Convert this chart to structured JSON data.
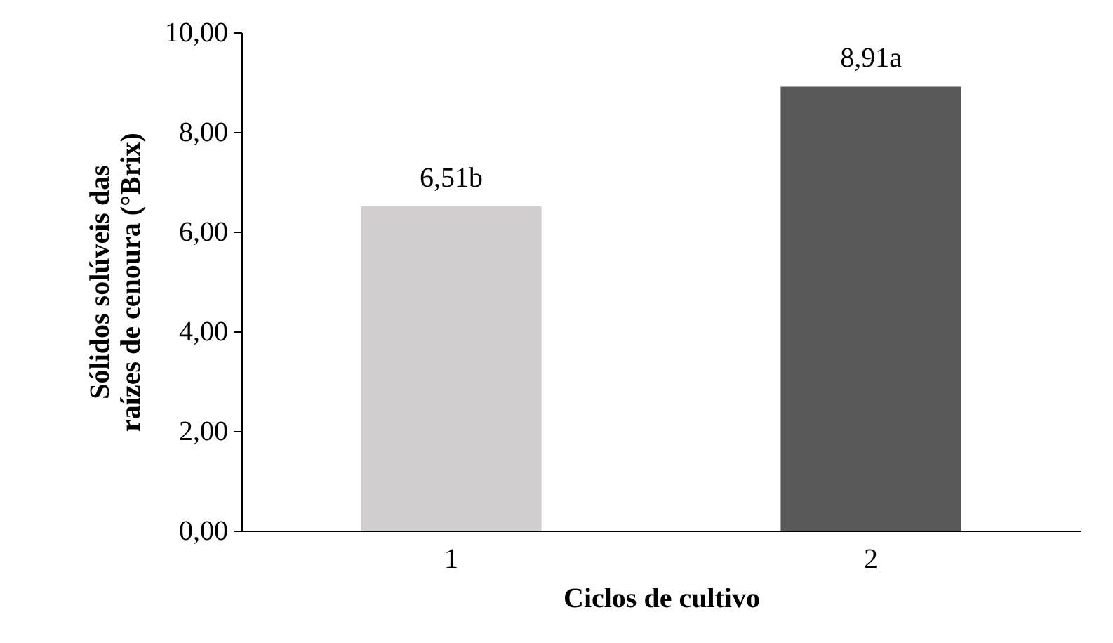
{
  "chart_data": {
    "type": "bar",
    "xlabel": "Ciclos de cultivo",
    "ylabel": "Sólidos solúveis das raízes de cenoura (°Brix)",
    "categories": [
      "1",
      "2"
    ],
    "values": [
      6.51,
      8.91
    ],
    "colors": [
      "#d0cece",
      "#595959"
    ],
    "value_labels": [
      "6,51b",
      "8,91a"
    ],
    "ylim": [
      0,
      10
    ],
    "yticks": [
      {
        "value": 0,
        "label": "0,00"
      },
      {
        "value": 2,
        "label": "2,00"
      },
      {
        "value": 4,
        "label": "4,00"
      },
      {
        "value": 6,
        "label": "6,00"
      },
      {
        "value": 8,
        "label": "8,00"
      },
      {
        "value": 10,
        "label": "10,00"
      }
    ],
    "grid": false
  }
}
